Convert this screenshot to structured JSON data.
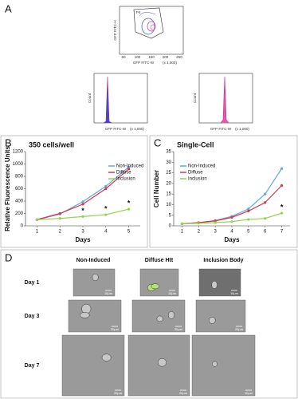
{
  "panel_a": {
    "label": "A",
    "scatter": {
      "x_label": "GFP FITC-W",
      "y_label": "GFP FITC-H",
      "gate": "P4",
      "unit": "(x 1,000)",
      "xticks": [
        "50",
        "100",
        "150",
        "200",
        "250"
      ]
    },
    "histograms": [
      {
        "x_label": "GFP FITC-W",
        "y_label": "Count",
        "unit": "(x 1,000)"
      },
      {
        "x_label": "GFP FITC-W",
        "y_label": "Count",
        "unit": "(x 1,000)"
      }
    ]
  },
  "chart_data": [
    {
      "type": "line",
      "panel": "B",
      "title": "350 cells/well",
      "y_label": "Relative Fluorescence Units",
      "x_label": "Days",
      "x": [
        1,
        2,
        3,
        4,
        5
      ],
      "xlim": [
        0.5,
        5.5
      ],
      "xticks": [
        1,
        2,
        3,
        4,
        5
      ],
      "ylim": [
        0,
        1200
      ],
      "yticks": [
        0,
        200,
        400,
        600,
        800,
        1000,
        1200
      ],
      "series": [
        {
          "name": "Non-Induced",
          "color": "#5fa8d8",
          "values": [
            100,
            190,
            390,
            640,
            950
          ]
        },
        {
          "name": "Diffuse",
          "color": "#d9344a",
          "values": [
            100,
            200,
            350,
            600,
            920
          ]
        },
        {
          "name": "Inclusion",
          "color": "#8fd44a",
          "values": [
            100,
            120,
            150,
            180,
            270
          ]
        }
      ],
      "significance": {
        "label": "*",
        "x": [
          3,
          4,
          5
        ]
      },
      "legend": "right"
    },
    {
      "type": "line",
      "panel": "C",
      "title": "Single-Cell",
      "y_label": "Cell Number",
      "x_label": "Days",
      "x": [
        1,
        2,
        3,
        4,
        5,
        6,
        7
      ],
      "xlim": [
        0.5,
        7.5
      ],
      "xticks": [
        1,
        2,
        3,
        4,
        5,
        6,
        7
      ],
      "ylim": [
        0,
        35
      ],
      "yticks": [
        0,
        5,
        10,
        15,
        20,
        25,
        30,
        35
      ],
      "series": [
        {
          "name": "Non-Induced",
          "color": "#5fa8d8",
          "values": [
            1,
            1.5,
            2.5,
            4.5,
            8,
            15,
            27
          ]
        },
        {
          "name": "Diffuse",
          "color": "#d9344a",
          "values": [
            1,
            1.5,
            2.3,
            4,
            7,
            11,
            19
          ]
        },
        {
          "name": "Inclusion",
          "color": "#8fd44a",
          "values": [
            1,
            1.2,
            1.5,
            2,
            3,
            3.5,
            6
          ]
        }
      ],
      "significance": {
        "label": "*",
        "x": [
          7
        ]
      },
      "legend": "left"
    }
  ],
  "panel_d": {
    "label": "D",
    "columns": [
      "Non-Induced",
      "Diffuse Htt",
      "Inclusion Body"
    ],
    "rows": [
      {
        "label": "Day 1",
        "scale_bars": [
          "10µm",
          "10µm",
          "10µm"
        ]
      },
      {
        "label": "Day 3",
        "scale_bars": [
          "20µm",
          "20µm",
          "20µm"
        ]
      },
      {
        "label": "Day 7",
        "scale_bars": [
          "20µm",
          "20µm",
          "10µm"
        ]
      }
    ]
  }
}
